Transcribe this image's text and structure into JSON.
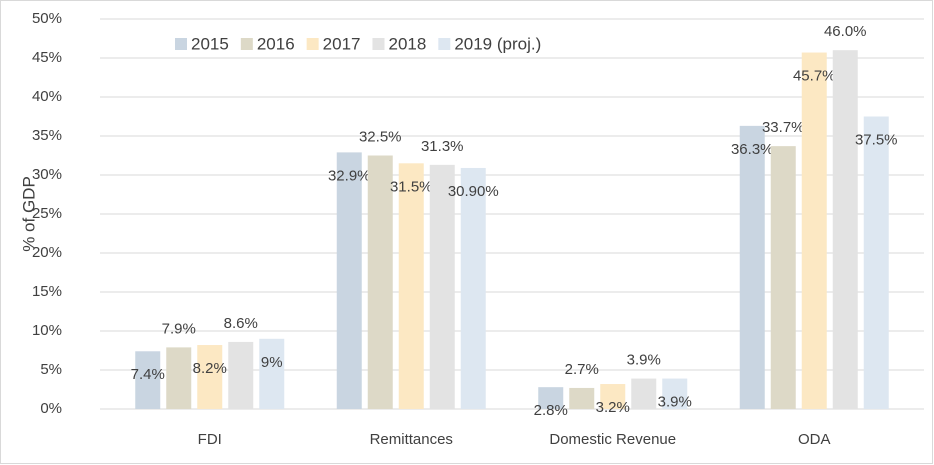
{
  "chart_data": {
    "type": "bar",
    "y_label": "% of GDP",
    "categories": [
      "FDI",
      "Remittances",
      "Domestic Revenue",
      "ODA"
    ],
    "series": [
      {
        "name": "2015",
        "color": "#c9d5e1",
        "values": [
          7.4,
          32.9,
          2.8,
          36.3
        ],
        "value_labels": [
          "7.4%",
          "32.9%",
          "2.8%",
          "36.3%"
        ]
      },
      {
        "name": "2016",
        "color": "#ddd9c7",
        "values": [
          7.9,
          32.5,
          2.7,
          33.7
        ],
        "value_labels": [
          "7.9%",
          "32.5%",
          "2.7%",
          "33.7%"
        ]
      },
      {
        "name": "2017",
        "color": "#fce8c3",
        "values": [
          8.2,
          31.5,
          3.2,
          45.7
        ],
        "value_labels": [
          "8.2%",
          "31.5%",
          "3.2%",
          "45.7%"
        ]
      },
      {
        "name": "2018",
        "color": "#e3e3e3",
        "values": [
          8.6,
          31.3,
          3.9,
          46.0
        ],
        "value_labels": [
          "8.6%",
          "31.3%",
          "3.9%",
          "46.0%"
        ]
      },
      {
        "name": "2019 (proj.)",
        "color": "#dde7f1",
        "values": [
          9,
          30.9,
          3.9,
          37.5
        ],
        "value_labels": [
          "9%",
          "30.90%",
          "3.9%",
          "37.5%"
        ]
      }
    ],
    "ylim": [
      0,
      50
    ],
    "yticks": [
      {
        "value": 0,
        "label": "0%"
      },
      {
        "value": 5,
        "label": "5%"
      },
      {
        "value": 10,
        "label": "10%"
      },
      {
        "value": 15,
        "label": "15%"
      },
      {
        "value": 20,
        "label": "20%"
      },
      {
        "value": 25,
        "label": "25%"
      },
      {
        "value": 30,
        "label": "30%"
      },
      {
        "value": 35,
        "label": "35%"
      },
      {
        "value": 40,
        "label": "40%"
      },
      {
        "value": 45,
        "label": "45%"
      },
      {
        "value": 50,
        "label": "50%"
      }
    ],
    "grid": true,
    "legend": "top-left"
  }
}
